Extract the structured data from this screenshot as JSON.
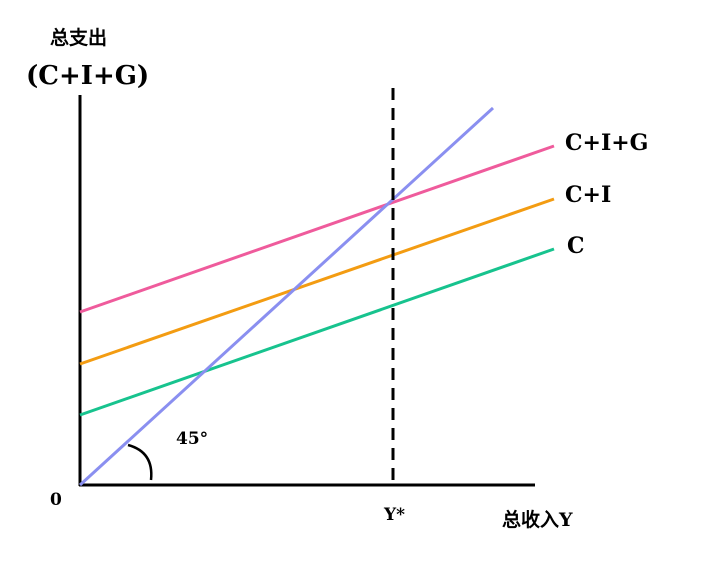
{
  "diagram": {
    "y_axis_title": "总支出",
    "y_axis_subtitle": "(C+I+G)",
    "x_axis_title": "总收入Y",
    "origin_label": "0",
    "equilibrium_label": "Y*",
    "angle_label": "45°",
    "lines": [
      {
        "id": "cig",
        "label": "C+I+G",
        "color": "#ef5b9c"
      },
      {
        "id": "ci",
        "label": "C+I",
        "color": "#f39c12"
      },
      {
        "id": "c",
        "label": "C",
        "color": "#17c38e"
      },
      {
        "id": "deg45",
        "label": "",
        "color": "#8a8ff0"
      }
    ],
    "dashed_line_color": "#000000",
    "axis_color": "#000000"
  }
}
